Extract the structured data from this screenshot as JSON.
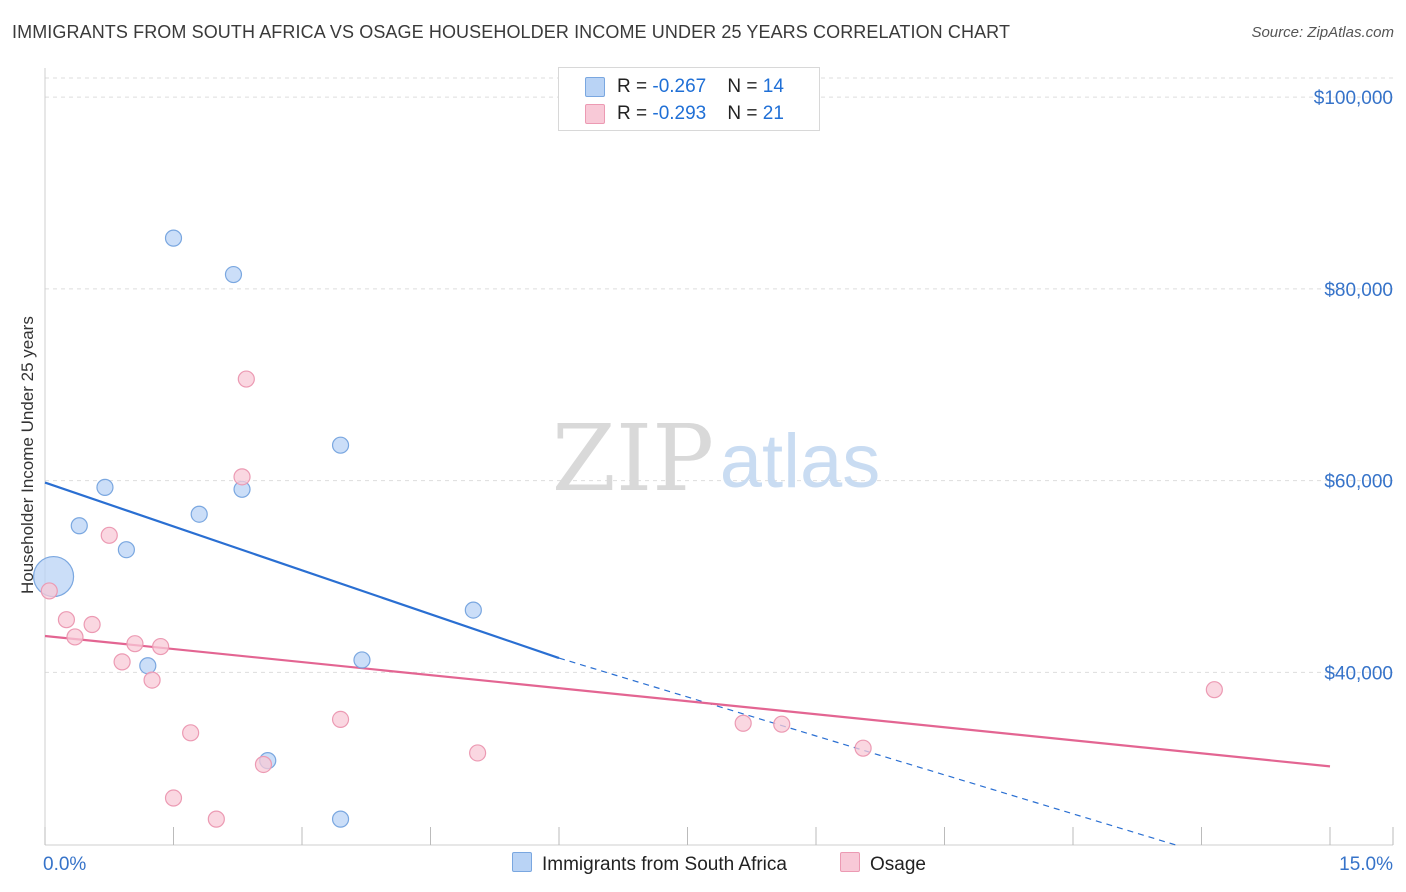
{
  "title": "IMMIGRANTS FROM SOUTH AFRICA VS OSAGE HOUSEHOLDER INCOME UNDER 25 YEARS CORRELATION CHART",
  "source": "Source: ZipAtlas.com",
  "watermark": {
    "zip": "ZIP",
    "atlas": "atlas"
  },
  "legend": {
    "series1": {
      "r_label": "R = ",
      "r_value": "-0.267",
      "n_label": "N = ",
      "n_value": "14"
    },
    "series2": {
      "r_label": "R = ",
      "r_value": "-0.293",
      "n_label": "N = ",
      "n_value": "21"
    }
  },
  "colors": {
    "blue_fill": "#b9d3f5",
    "blue_stroke": "#7aa7e0",
    "blue_line": "#2a6fd2",
    "pink_fill": "#f8c9d7",
    "pink_stroke": "#ec9ab3",
    "pink_line": "#e36592",
    "axis_label": "#3673c9",
    "grid": "#dddddd"
  },
  "chart_data": {
    "type": "scatter",
    "title": "IMMIGRANTS FROM SOUTH AFRICA VS OSAGE HOUSEHOLDER INCOME UNDER 25 YEARS CORRELATION CHART",
    "xlabel": "",
    "ylabel": "Householder Income Under 25 years",
    "xlim": [
      0,
      15
    ],
    "ylim": [
      22000,
      102000
    ],
    "x_tick_labels": [
      "0.0%",
      "15.0%"
    ],
    "y_ticks": [
      40000,
      60000,
      80000,
      100000
    ],
    "y_tick_labels": [
      "$40,000",
      "$60,000",
      "$80,000",
      "$100,000"
    ],
    "series": [
      {
        "name": "Immigrants from South Africa",
        "color": "blue",
        "points": [
          {
            "x": 0.1,
            "y": 50000,
            "big": true
          },
          {
            "x": 0.4,
            "y": 55300
          },
          {
            "x": 0.7,
            "y": 59300
          },
          {
            "x": 0.95,
            "y": 52800
          },
          {
            "x": 1.2,
            "y": 40700
          },
          {
            "x": 1.5,
            "y": 85300
          },
          {
            "x": 1.8,
            "y": 56500
          },
          {
            "x": 2.2,
            "y": 81500
          },
          {
            "x": 2.3,
            "y": 59100
          },
          {
            "x": 2.6,
            "y": 30800
          },
          {
            "x": 3.45,
            "y": 63700
          },
          {
            "x": 3.7,
            "y": 41300
          },
          {
            "x": 5.0,
            "y": 46500
          },
          {
            "x": 3.45,
            "y": 24700
          }
        ],
        "trend": {
          "x0": 0,
          "y0": 59800,
          "x1": 6.0,
          "y1": 41500,
          "dash_x_end": 13.2,
          "dash_y_end": 22000
        }
      },
      {
        "name": "Osage",
        "color": "pink",
        "points": [
          {
            "x": 0.05,
            "y": 48500
          },
          {
            "x": 0.25,
            "y": 45500
          },
          {
            "x": 0.35,
            "y": 43700
          },
          {
            "x": 0.55,
            "y": 45000
          },
          {
            "x": 0.75,
            "y": 54300
          },
          {
            "x": 0.9,
            "y": 41100
          },
          {
            "x": 1.05,
            "y": 43000
          },
          {
            "x": 1.25,
            "y": 39200
          },
          {
            "x": 1.35,
            "y": 42700
          },
          {
            "x": 1.5,
            "y": 26900
          },
          {
            "x": 1.7,
            "y": 33700
          },
          {
            "x": 2.0,
            "y": 24700
          },
          {
            "x": 2.3,
            "y": 60400
          },
          {
            "x": 2.35,
            "y": 70600
          },
          {
            "x": 2.55,
            "y": 30400
          },
          {
            "x": 3.45,
            "y": 35100
          },
          {
            "x": 5.05,
            "y": 31600
          },
          {
            "x": 8.15,
            "y": 34700
          },
          {
            "x": 8.6,
            "y": 34600
          },
          {
            "x": 9.55,
            "y": 32100
          },
          {
            "x": 13.65,
            "y": 38200
          }
        ],
        "trend": {
          "x0": 0,
          "y0": 43800,
          "x1": 15,
          "y1": 30200
        }
      }
    ],
    "legend_labels": [
      "Immigrants from South Africa",
      "Osage"
    ]
  }
}
